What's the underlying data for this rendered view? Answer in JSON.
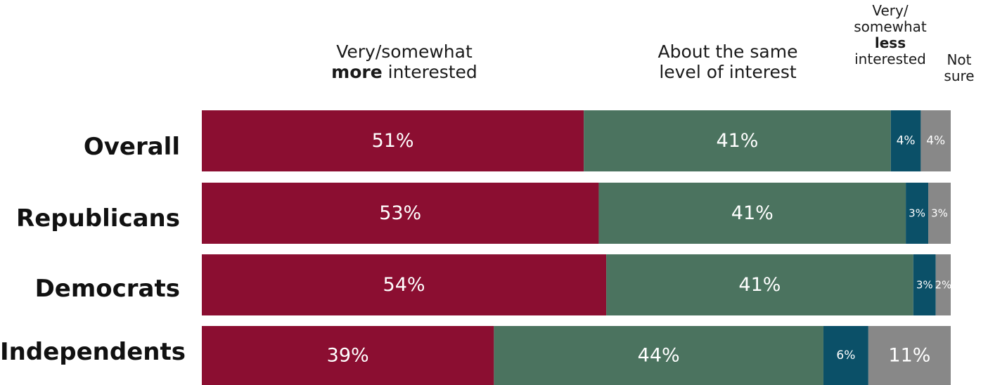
{
  "headers": {
    "more_line1": "Very/somewhat",
    "more_bold": "more",
    "more_rest": "interested",
    "same_line1": "About the same",
    "same_line2": "level of interest",
    "less_line1": "Very/",
    "less_line2": "somewhat",
    "less_bold": "less",
    "less_line4": "interested",
    "notsure_line1": "Not",
    "notsure_line2": "sure"
  },
  "chart_data": {
    "type": "bar",
    "orientation": "horizontal",
    "stacked": true,
    "percent_stacked": true,
    "categories": [
      "Overall",
      "Republicans",
      "Democrats",
      "Independents"
    ],
    "series": [
      {
        "name": "Very/somewhat more interested",
        "color": "#8b0e31",
        "values": [
          51,
          53,
          54,
          39
        ],
        "labels": [
          "51%",
          "53%",
          "54%",
          "39%"
        ]
      },
      {
        "name": "About the same level of interest",
        "color": "#4b735f",
        "values": [
          41,
          41,
          41,
          44
        ],
        "labels": [
          "41%",
          "41%",
          "41%",
          "44%"
        ]
      },
      {
        "name": "Very/somewhat less interested",
        "color": "#0b5068",
        "values": [
          4,
          3,
          3,
          6
        ],
        "labels": [
          "4%",
          "3%",
          "3%",
          "6%"
        ]
      },
      {
        "name": "Not sure",
        "color": "#888888",
        "values": [
          4,
          3,
          2,
          11
        ],
        "labels": [
          "4%",
          "3%",
          "2%",
          "11%"
        ]
      }
    ],
    "legend": "top",
    "grid": false
  }
}
